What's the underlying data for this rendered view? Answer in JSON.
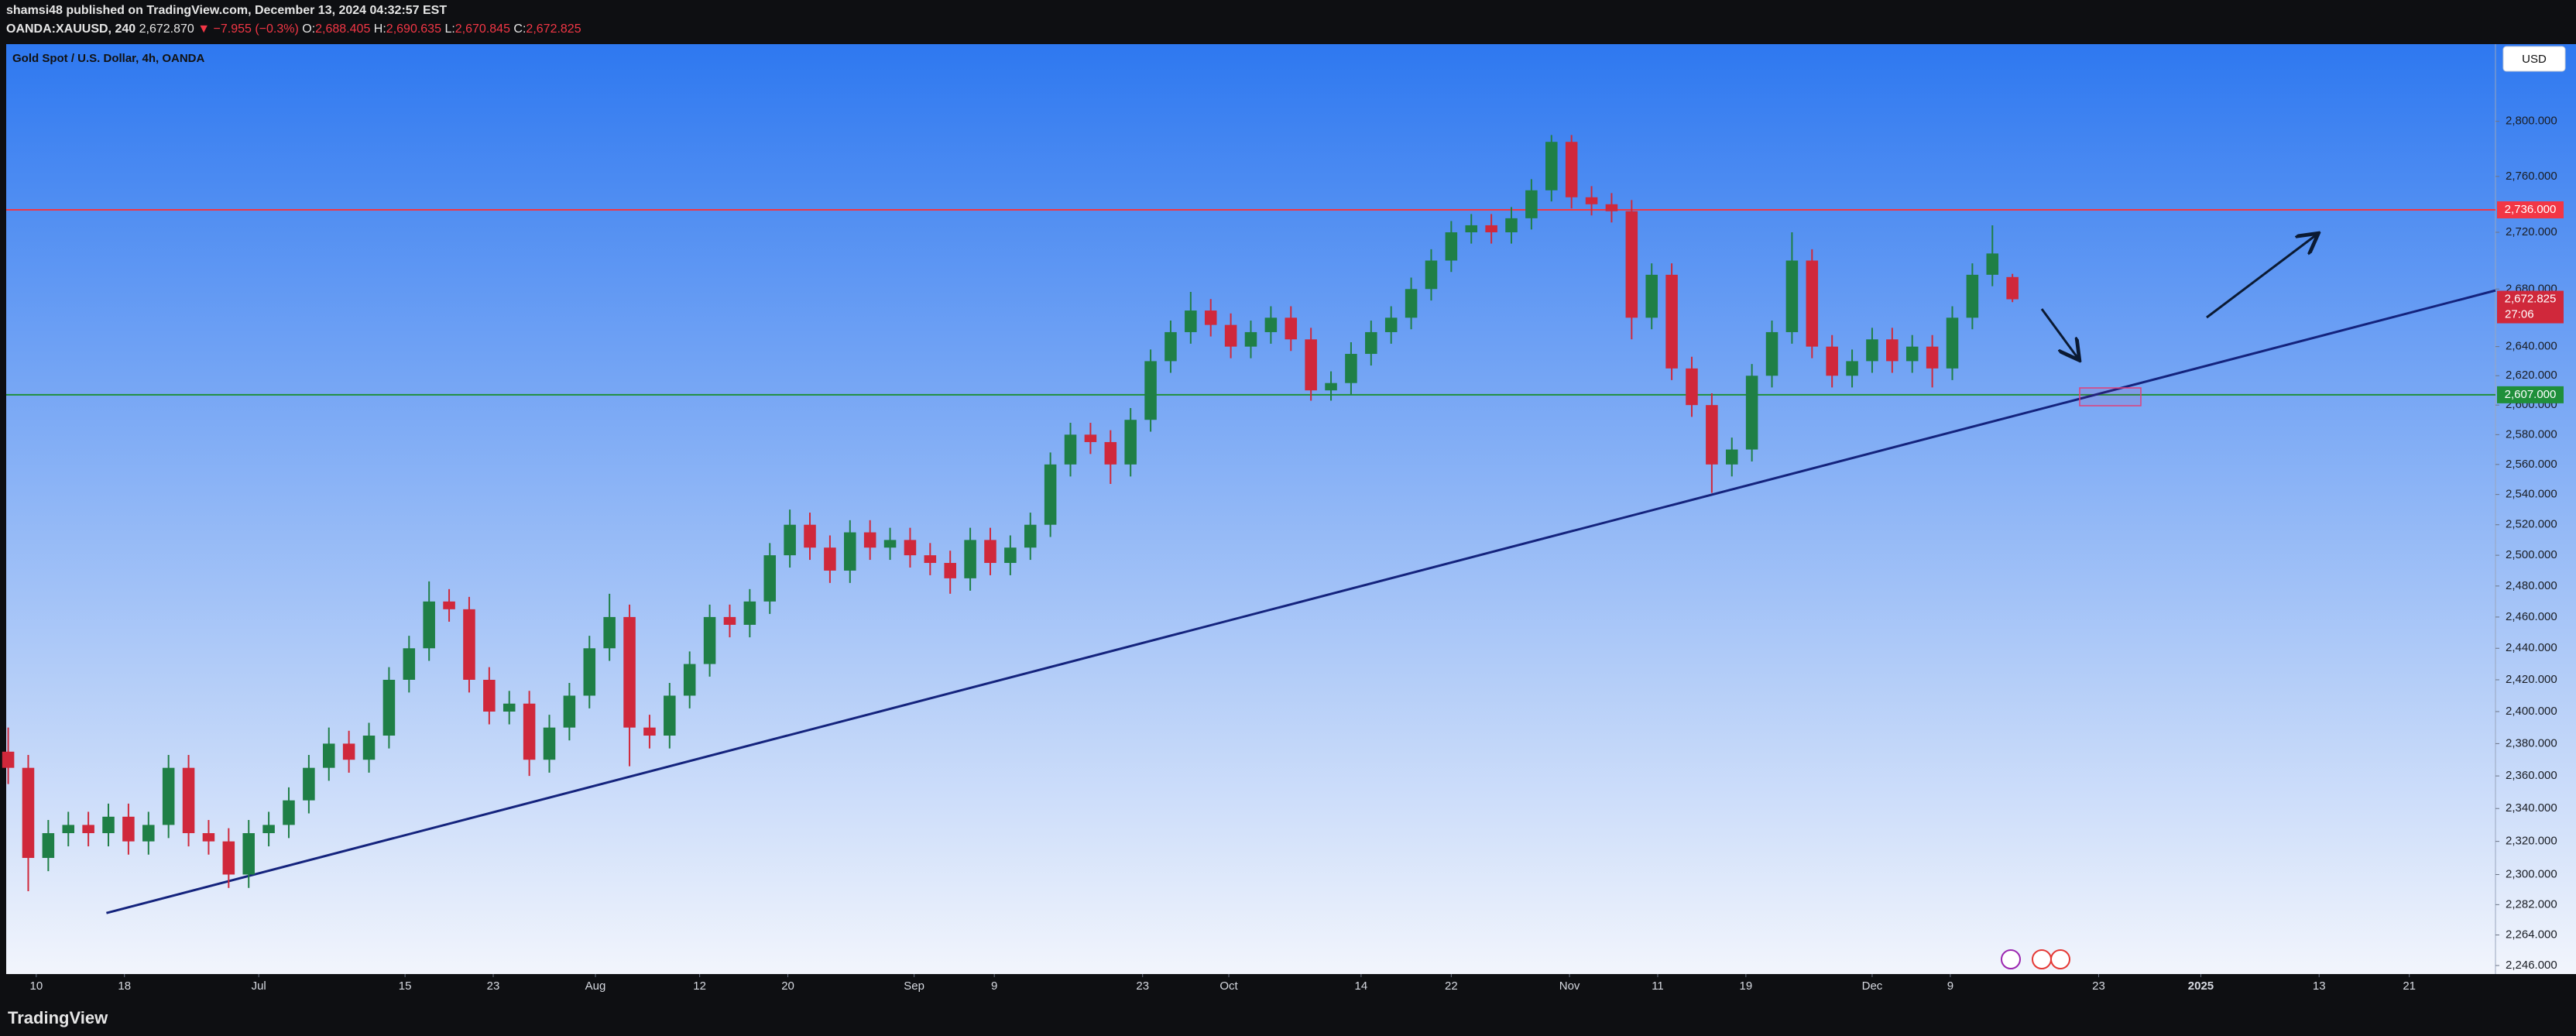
{
  "header": {
    "author_line": "shamsi48 published on TradingView.com, December 13, 2024 04:32:57 EST",
    "symbol": "OANDA:XAUUSD, 240",
    "last": "2,672.870",
    "change": "▼ −7.955 (−0.3%)",
    "o_label": "O:",
    "o": "2,688.405",
    "h_label": "H:",
    "h": "2,690.635",
    "l_label": "L:",
    "l": "2,670.845",
    "c_label": "C:",
    "c": "2,672.825",
    "legend": "Gold Spot / U.S. Dollar, 4h, OANDA",
    "currency": "USD"
  },
  "footer": {
    "brand": "TradingView"
  },
  "chart_data": {
    "type": "candlestick",
    "log_scale": true,
    "up_color": "#1f7f46",
    "down_color": "#d0283b",
    "xlim": [
      -0.1,
      124.1
    ],
    "ylim": [
      2241,
      2857
    ],
    "xticks": [
      {
        "value": 1.4,
        "label": "10"
      },
      {
        "value": 5.8,
        "label": "18"
      },
      {
        "value": 12.5,
        "label": "Jul"
      },
      {
        "value": 19.8,
        "label": "15"
      },
      {
        "value": 24.2,
        "label": "23"
      },
      {
        "value": 29.3,
        "label": "Aug"
      },
      {
        "value": 34.5,
        "label": "12"
      },
      {
        "value": 38.9,
        "label": "20"
      },
      {
        "value": 45.2,
        "label": "Sep"
      },
      {
        "value": 49.2,
        "label": "9"
      },
      {
        "value": 56.6,
        "label": "23"
      },
      {
        "value": 60.9,
        "label": "Oct"
      },
      {
        "value": 67.5,
        "label": "14"
      },
      {
        "value": 72,
        "label": "22"
      },
      {
        "value": 77.9,
        "label": "Nov"
      },
      {
        "value": 82.3,
        "label": "11"
      },
      {
        "value": 86.7,
        "label": "19"
      },
      {
        "value": 93,
        "label": "Dec"
      },
      {
        "value": 96.9,
        "label": "9"
      },
      {
        "value": 104.3,
        "label": "23"
      },
      {
        "value": 109.4,
        "label": "2025"
      },
      {
        "value": 115.3,
        "label": "13"
      },
      {
        "value": 119.8,
        "label": "21"
      }
    ],
    "yticks": [
      {
        "value": 2800,
        "label": "2,800.000"
      },
      {
        "value": 2760,
        "label": "2,760.000"
      },
      {
        "value": 2720,
        "label": "2,720.000"
      },
      {
        "value": 2680,
        "label": "2,680.000"
      },
      {
        "value": 2640,
        "label": "2,640.000"
      },
      {
        "value": 2620,
        "label": "2,620.000"
      },
      {
        "value": 2600,
        "label": "2,600.000"
      },
      {
        "value": 2580,
        "label": "2,580.000"
      },
      {
        "value": 2560,
        "label": "2,560.000"
      },
      {
        "value": 2540,
        "label": "2,540.000"
      },
      {
        "value": 2520,
        "label": "2,520.000"
      },
      {
        "value": 2500,
        "label": "2,500.000"
      },
      {
        "value": 2480,
        "label": "2,480.000"
      },
      {
        "value": 2460,
        "label": "2,460.000"
      },
      {
        "value": 2440,
        "label": "2,440.000"
      },
      {
        "value": 2420,
        "label": "2,420.000"
      },
      {
        "value": 2400,
        "label": "2,400.000"
      },
      {
        "value": 2380,
        "label": "2,380.000"
      },
      {
        "value": 2360,
        "label": "2,360.000"
      },
      {
        "value": 2340,
        "label": "2,340.000"
      },
      {
        "value": 2320,
        "label": "2,320.000"
      },
      {
        "value": 2300,
        "label": "2,300.000"
      },
      {
        "value": 2282,
        "label": "2,282.000"
      },
      {
        "value": 2264,
        "label": "2,264.000"
      },
      {
        "value": 2246,
        "label": "2,246.000"
      }
    ],
    "open": [
      2375,
      2365,
      2310,
      2325,
      2330,
      2325,
      2335,
      2320,
      2330,
      2365,
      2325,
      2320,
      2300,
      2325,
      2330,
      2345,
      2365,
      2380,
      2370,
      2385,
      2420,
      2440,
      2470,
      2465,
      2420,
      2400,
      2405,
      2370,
      2390,
      2410,
      2440,
      2460,
      2390,
      2385,
      2410,
      2430,
      2460,
      2455,
      2470,
      2500,
      2520,
      2505,
      2490,
      2515,
      2505,
      2510,
      2500,
      2495,
      2485,
      2510,
      2495,
      2505,
      2520,
      2560,
      2580,
      2575,
      2560,
      2590,
      2630,
      2650,
      2665,
      2655,
      2640,
      2650,
      2660,
      2645,
      2610,
      2615,
      2635,
      2650,
      2660,
      2680,
      2700,
      2720,
      2725,
      2720,
      2730,
      2750,
      2785,
      2745,
      2740,
      2735,
      2660,
      2690,
      2625,
      2600,
      2560,
      2570,
      2620,
      2650,
      2700,
      2640,
      2620,
      2630,
      2645,
      2630,
      2640,
      2625,
      2660,
      2690,
      2688.405
    ],
    "high": [
      2390,
      2373,
      2333,
      2338,
      2338,
      2343,
      2343,
      2338,
      2373,
      2373,
      2333,
      2328,
      2333,
      2338,
      2353,
      2373,
      2390,
      2388,
      2393,
      2428,
      2448,
      2483,
      2478,
      2473,
      2428,
      2413,
      2413,
      2398,
      2418,
      2448,
      2475,
      2468,
      2398,
      2418,
      2438,
      2468,
      2468,
      2478,
      2508,
      2530,
      2528,
      2513,
      2523,
      2523,
      2518,
      2518,
      2508,
      2503,
      2518,
      2518,
      2513,
      2528,
      2568,
      2588,
      2588,
      2583,
      2598,
      2638,
      2658,
      2678,
      2673,
      2663,
      2658,
      2668,
      2668,
      2653,
      2623,
      2643,
      2658,
      2668,
      2688,
      2708,
      2728,
      2733,
      2733,
      2738,
      2758,
      2790,
      2790,
      2753,
      2748,
      2743,
      2698,
      2698,
      2633,
      2608,
      2578,
      2628,
      2658,
      2720,
      2708,
      2648,
      2638,
      2653,
      2653,
      2648,
      2648,
      2668,
      2698,
      2725,
      2690.635
    ],
    "low": [
      2355,
      2290,
      2302,
      2317,
      2317,
      2317,
      2312,
      2312,
      2322,
      2317,
      2312,
      2292,
      2292,
      2317,
      2322,
      2337,
      2357,
      2362,
      2362,
      2377,
      2412,
      2432,
      2457,
      2412,
      2392,
      2392,
      2360,
      2362,
      2382,
      2402,
      2432,
      2366,
      2377,
      2377,
      2402,
      2422,
      2447,
      2447,
      2462,
      2492,
      2497,
      2482,
      2482,
      2497,
      2497,
      2492,
      2487,
      2475,
      2477,
      2487,
      2487,
      2497,
      2512,
      2552,
      2567,
      2547,
      2552,
      2582,
      2622,
      2642,
      2647,
      2632,
      2632,
      2642,
      2637,
      2603,
      2603,
      2607,
      2627,
      2642,
      2652,
      2672,
      2692,
      2712,
      2712,
      2712,
      2722,
      2742,
      2737,
      2732,
      2727,
      2645,
      2652,
      2617,
      2592,
      2541,
      2552,
      2562,
      2612,
      2642,
      2632,
      2612,
      2612,
      2622,
      2622,
      2622,
      2612,
      2617,
      2652,
      2682,
      2670.845
    ],
    "close": [
      2365,
      2310,
      2325,
      2330,
      2325,
      2335,
      2320,
      2330,
      2365,
      2325,
      2320,
      2300,
      2325,
      2330,
      2345,
      2365,
      2380,
      2370,
      2385,
      2420,
      2440,
      2470,
      2465,
      2420,
      2400,
      2405,
      2370,
      2390,
      2410,
      2440,
      2460,
      2390,
      2385,
      2410,
      2430,
      2460,
      2455,
      2470,
      2500,
      2520,
      2505,
      2490,
      2515,
      2505,
      2510,
      2500,
      2495,
      2485,
      2510,
      2495,
      2505,
      2520,
      2560,
      2580,
      2575,
      2560,
      2590,
      2630,
      2650,
      2665,
      2655,
      2640,
      2650,
      2660,
      2645,
      2610,
      2615,
      2635,
      2650,
      2660,
      2680,
      2700,
      2720,
      2725,
      2720,
      2730,
      2750,
      2785,
      2745,
      2740,
      2735,
      2660,
      2690,
      2625,
      2600,
      2560,
      2570,
      2620,
      2650,
      2700,
      2640,
      2620,
      2630,
      2645,
      2630,
      2640,
      2625,
      2660,
      2690,
      2705,
      2672.825
    ],
    "hlines": [
      {
        "value": 2736,
        "label": "2,736.000",
        "color": "#f23645"
      },
      {
        "value": 2607,
        "label": "2,607.000",
        "color": "#1f8f3a"
      }
    ],
    "current": {
      "value": 2672.825,
      "label": "2,672.825",
      "countdown": "27:06",
      "color": "#d0283b"
    },
    "trendline": {
      "x": [
        4.9,
        124.1
      ],
      "y": [
        2277,
        2679
      ],
      "color": "#14237d"
    }
  }
}
